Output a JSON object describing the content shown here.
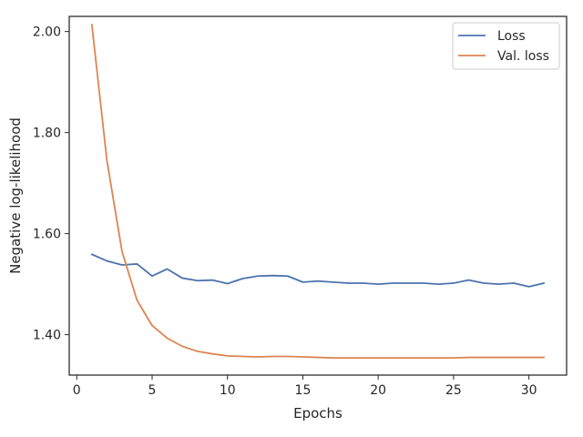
{
  "chart_data": {
    "type": "line",
    "title": "",
    "xlabel": "Epochs",
    "ylabel": "Negative log-likelihood",
    "xlim": [
      -0.5,
      32.5
    ],
    "ylim": [
      1.32,
      2.03
    ],
    "xticks": [
      0,
      5,
      10,
      15,
      20,
      25,
      30
    ],
    "xtick_labels": [
      "0",
      "5",
      "10",
      "15",
      "20",
      "25",
      "30"
    ],
    "yticks": [
      1.4,
      1.6,
      1.8,
      2.0
    ],
    "ytick_labels": [
      "1.40",
      "1.60",
      "1.80",
      "2.00"
    ],
    "grid": false,
    "legend_position": "top-right",
    "x": [
      1,
      2,
      3,
      4,
      5,
      6,
      7,
      8,
      9,
      10,
      11,
      12,
      13,
      14,
      15,
      16,
      17,
      18,
      19,
      20,
      21,
      22,
      23,
      24,
      25,
      26,
      27,
      28,
      29,
      30,
      31
    ],
    "series": [
      {
        "name": "Loss",
        "color": "#4c72b0",
        "values": [
          1.559,
          1.546,
          1.538,
          1.54,
          1.516,
          1.53,
          1.512,
          1.507,
          1.508,
          1.501,
          1.511,
          1.516,
          1.517,
          1.516,
          1.504,
          1.506,
          1.504,
          1.502,
          1.502,
          1.5,
          1.502,
          1.502,
          1.502,
          1.5,
          1.502,
          1.508,
          1.502,
          1.5,
          1.502,
          1.495,
          1.502
        ]
      },
      {
        "name": "Val. loss",
        "color": "#dd8452",
        "values": [
          2.014,
          1.745,
          1.565,
          1.468,
          1.418,
          1.393,
          1.377,
          1.367,
          1.362,
          1.358,
          1.357,
          1.356,
          1.357,
          1.357,
          1.356,
          1.355,
          1.354,
          1.354,
          1.354,
          1.354,
          1.354,
          1.354,
          1.354,
          1.354,
          1.354,
          1.355,
          1.355,
          1.355,
          1.355,
          1.355,
          1.355
        ]
      }
    ]
  }
}
